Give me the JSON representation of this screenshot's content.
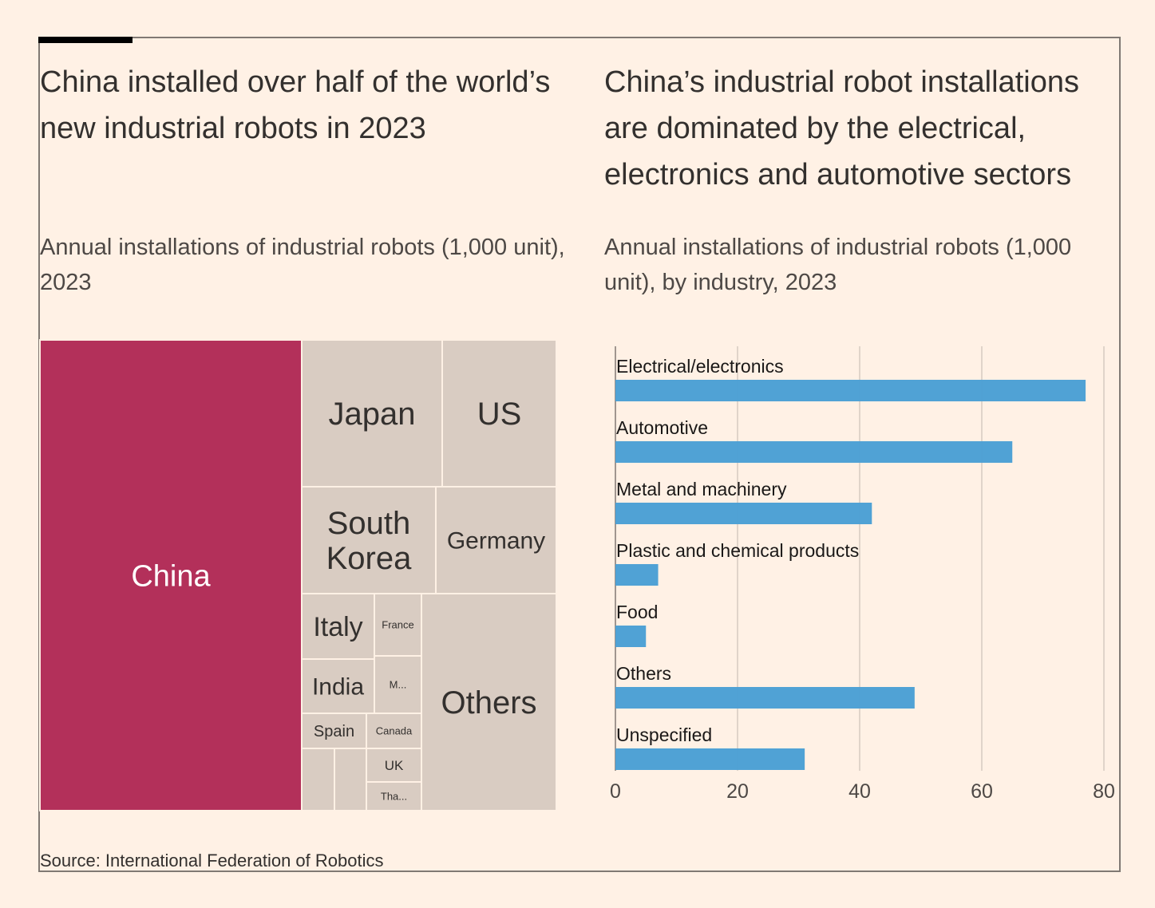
{
  "source": "Source: International Federation of Robotics",
  "colors": {
    "background": "#fff1e5",
    "china_highlight": "#b3305a",
    "other_countries": "#d9ccc2",
    "bar": "#4a9fd4",
    "gridline": "#ccc1b7"
  },
  "chart_data": [
    {
      "type": "treemap",
      "title": "China installed over half of the world’s new industrial robots in 2023",
      "subtitle": "Annual installations of industrial robots (1,000 unit), 2023",
      "highlight": "China",
      "labels": [
        "China",
        "Japan",
        "US",
        "South Korea",
        "Germany",
        "Italy",
        "France",
        "India",
        "M...",
        "Spain",
        "Canada",
        "UK",
        "Tha...",
        "Others"
      ]
    },
    {
      "type": "bar",
      "orientation": "horizontal",
      "title": "China’s industrial robot installations are dominated by the electrical, electronics and automotive sectors",
      "subtitle": "Annual installations of industrial robots (1,000 unit), by industry, 2023",
      "categories": [
        "Electrical/electronics",
        "Automotive",
        "Metal and machinery",
        "Plastic and chemical products",
        "Food",
        "Others",
        "Unspecified"
      ],
      "values": [
        77,
        65,
        42,
        7,
        5,
        49,
        31
      ],
      "xlim": [
        0,
        80
      ],
      "xticks": [
        0,
        20,
        40,
        60,
        80
      ],
      "grid": true
    }
  ]
}
